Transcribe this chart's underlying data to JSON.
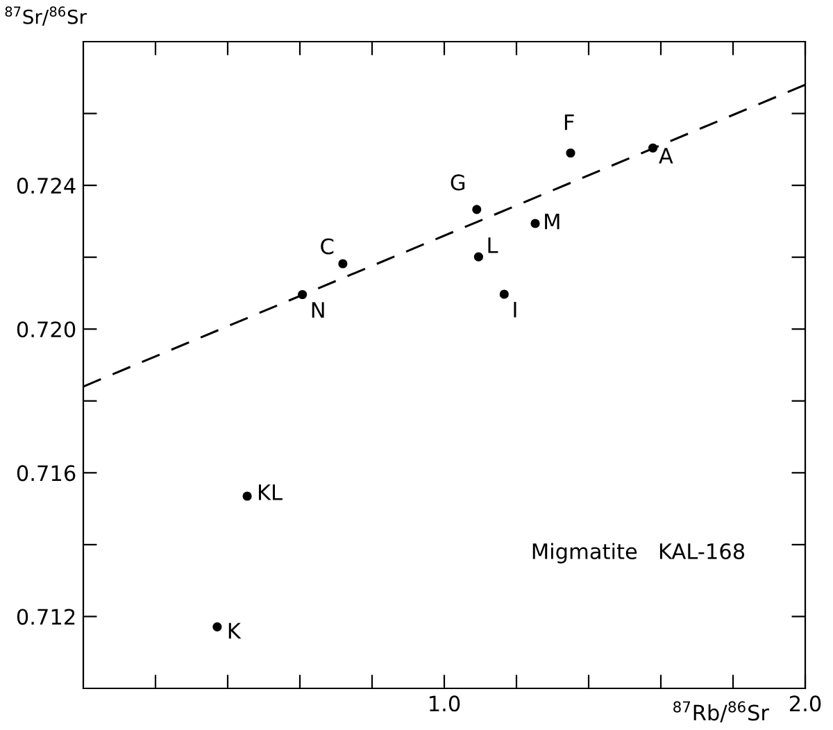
{
  "chart_data": {
    "type": "scatter",
    "xlabel": "$^{87}$Rb/$^{86}$Sr",
    "ylabel": "$^{87}$Sr/$^{86}$Sr",
    "xlim": [
      0,
      2
    ],
    "ylim": [
      0.71,
      0.728
    ],
    "xticks": [
      {
        "value": 0.2,
        "label": null
      },
      {
        "value": 0.4,
        "label": null
      },
      {
        "value": 0.6,
        "label": null
      },
      {
        "value": 0.8,
        "label": null
      },
      {
        "value": 1.0,
        "label": "1.0"
      },
      {
        "value": 1.2,
        "label": null
      },
      {
        "value": 1.4,
        "label": null
      },
      {
        "value": 1.6,
        "label": null
      },
      {
        "value": 1.8,
        "label": null
      },
      {
        "value": 2.0,
        "label": "2.0"
      }
    ],
    "yticks": [
      {
        "value": 0.712,
        "label": "0.712"
      },
      {
        "value": 0.714,
        "label": null
      },
      {
        "value": 0.716,
        "label": "0.716"
      },
      {
        "value": 0.718,
        "label": null
      },
      {
        "value": 0.72,
        "label": "0.720"
      },
      {
        "value": 0.722,
        "label": null
      },
      {
        "value": 0.724,
        "label": "0.724"
      },
      {
        "value": 0.726,
        "label": null
      }
    ],
    "grid": false,
    "legend": false,
    "series": [
      {
        "color": "#000000",
        "marker": "circle",
        "x": [
          0.607,
          0.719,
          1.09,
          1.095,
          1.166,
          1.252,
          1.35,
          1.578,
          0.454,
          0.371
        ],
        "values": [
          0.72096,
          0.72182,
          0.72333,
          0.72201,
          0.72097,
          0.72294,
          0.7249,
          0.72504,
          0.71535,
          0.71171
        ]
      },
      {
        "type": "line",
        "color": "#000000",
        "line_style": "dashed",
        "marker": "none",
        "x": [
          0,
          2
        ],
        "values": [
          0.7184,
          0.7268
        ]
      }
    ],
    "annotations": [
      {
        "text": "N",
        "x": 0.607,
        "y": 0.72096
      },
      {
        "text": "C",
        "x": 0.719,
        "y": 0.72182
      },
      {
        "text": "G",
        "x": 1.09,
        "y": 0.72333
      },
      {
        "text": "L",
        "x": 1.095,
        "y": 0.72201
      },
      {
        "text": "I",
        "x": 1.166,
        "y": 0.72097
      },
      {
        "text": "M",
        "x": 1.252,
        "y": 0.72294
      },
      {
        "text": "F",
        "x": 1.35,
        "y": 0.7249
      },
      {
        "text": "A",
        "x": 1.578,
        "y": 0.72504
      },
      {
        "text": "KL",
        "x": 0.454,
        "y": 0.71535
      },
      {
        "text": "K",
        "x": 0.371,
        "y": 0.71171
      },
      "Migmatite   KAL-168"
    ]
  }
}
